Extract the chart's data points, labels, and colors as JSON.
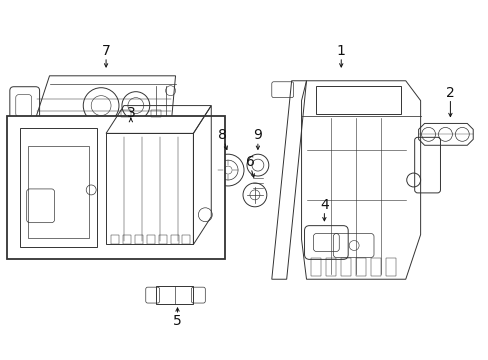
{
  "background_color": "#ffffff",
  "line_color": "#333333",
  "figure_width": 4.89,
  "figure_height": 3.6,
  "dpi": 100,
  "parts": {
    "label_fontsize": 10,
    "arrow_lw": 0.7,
    "part_lw": 0.7
  }
}
